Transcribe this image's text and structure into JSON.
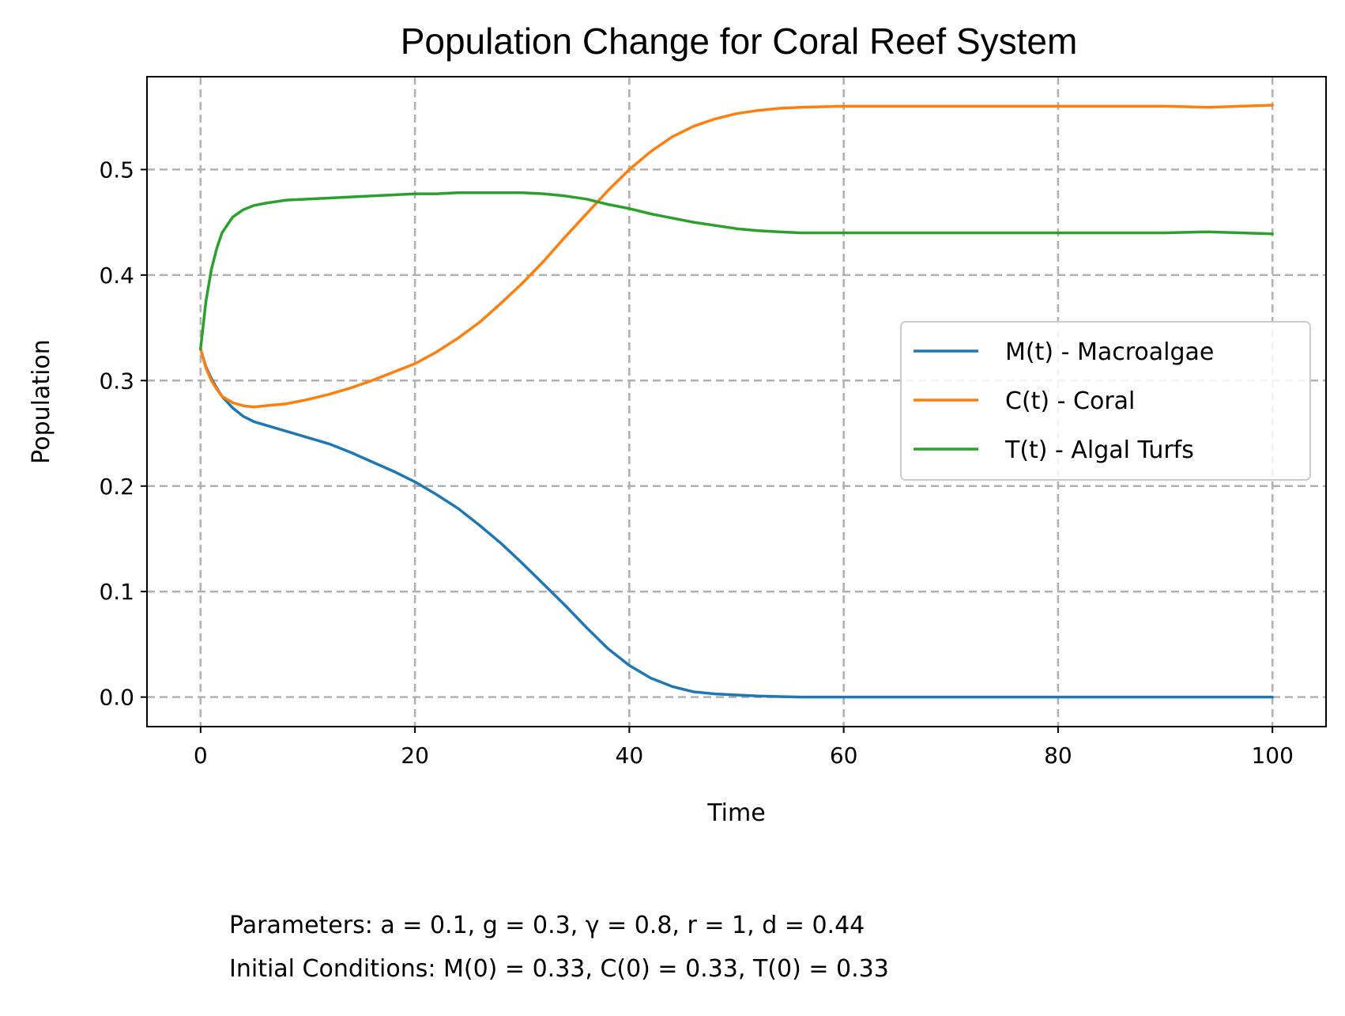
{
  "chart_data": {
    "type": "line",
    "title": "Population Change for Coral Reef System",
    "xlabel": "Time",
    "ylabel": "Population",
    "xlim": [
      -5,
      105
    ],
    "ylim": [
      -0.028,
      0.588
    ],
    "x_ticks": [
      "0",
      "20",
      "40",
      "60",
      "80",
      "100"
    ],
    "y_ticks": [
      "0.0",
      "0.1",
      "0.2",
      "0.3",
      "0.4",
      "0.5"
    ],
    "grid": true,
    "grid_style": "dashed",
    "legend_position": "center-right",
    "series": [
      {
        "name": "M(t) - Macroalgae",
        "color": "#1f77b4",
        "x": [
          0,
          0.5,
          1,
          1.5,
          2,
          3,
          4,
          5,
          6,
          8,
          10,
          12,
          14,
          16,
          18,
          20,
          22,
          24,
          26,
          28,
          30,
          32,
          34,
          36,
          38,
          40,
          42,
          44,
          46,
          48,
          50,
          52,
          54,
          56,
          58,
          60,
          70,
          80,
          90,
          100
        ],
        "y": [
          0.33,
          0.313,
          0.302,
          0.293,
          0.285,
          0.274,
          0.266,
          0.261,
          0.258,
          0.252,
          0.246,
          0.24,
          0.232,
          0.223,
          0.214,
          0.204,
          0.192,
          0.179,
          0.163,
          0.146,
          0.127,
          0.107,
          0.087,
          0.066,
          0.046,
          0.03,
          0.018,
          0.01,
          0.005,
          0.003,
          0.002,
          0.001,
          0.0005,
          0.0,
          0.0,
          0.0,
          0.0,
          0.0,
          0.0,
          0.0
        ]
      },
      {
        "name": "C(t) - Coral",
        "color": "#ff7f0e",
        "x": [
          0,
          0.5,
          1,
          1.5,
          2,
          3,
          4,
          5,
          6,
          8,
          10,
          12,
          14,
          16,
          18,
          20,
          22,
          24,
          26,
          28,
          30,
          32,
          34,
          36,
          38,
          40,
          42,
          44,
          46,
          48,
          50,
          52,
          54,
          56,
          58,
          60,
          70,
          80,
          90,
          94,
          100
        ],
        "y": [
          0.33,
          0.312,
          0.3,
          0.292,
          0.285,
          0.279,
          0.276,
          0.275,
          0.276,
          0.278,
          0.282,
          0.287,
          0.293,
          0.3,
          0.308,
          0.316,
          0.327,
          0.34,
          0.355,
          0.373,
          0.392,
          0.413,
          0.436,
          0.458,
          0.48,
          0.5,
          0.517,
          0.531,
          0.541,
          0.548,
          0.553,
          0.556,
          0.558,
          0.559,
          0.5595,
          0.56,
          0.56,
          0.56,
          0.56,
          0.559,
          0.561
        ]
      },
      {
        "name": "T(t) - Algal Turfs",
        "color": "#2ca02c",
        "x": [
          0,
          0.5,
          1,
          1.5,
          2,
          3,
          4,
          5,
          6,
          8,
          10,
          12,
          14,
          16,
          18,
          20,
          22,
          24,
          26,
          28,
          30,
          32,
          34,
          36,
          38,
          40,
          42,
          44,
          46,
          48,
          50,
          52,
          54,
          56,
          58,
          60,
          70,
          80,
          90,
          94,
          100
        ],
        "y": [
          0.33,
          0.375,
          0.405,
          0.425,
          0.44,
          0.455,
          0.462,
          0.466,
          0.468,
          0.471,
          0.472,
          0.473,
          0.474,
          0.475,
          0.476,
          0.477,
          0.477,
          0.478,
          0.478,
          0.478,
          0.478,
          0.477,
          0.475,
          0.472,
          0.467,
          0.463,
          0.458,
          0.454,
          0.45,
          0.447,
          0.444,
          0.442,
          0.441,
          0.44,
          0.44,
          0.44,
          0.44,
          0.44,
          0.44,
          0.441,
          0.439
        ]
      }
    ]
  },
  "caption": {
    "line1": "Parameters: a = 0.1, g = 0.3, γ = 0.8, r = 1, d = 0.44",
    "line2": "Initial Conditions: M(0) = 0.33, C(0) = 0.33, T(0) = 0.33"
  }
}
